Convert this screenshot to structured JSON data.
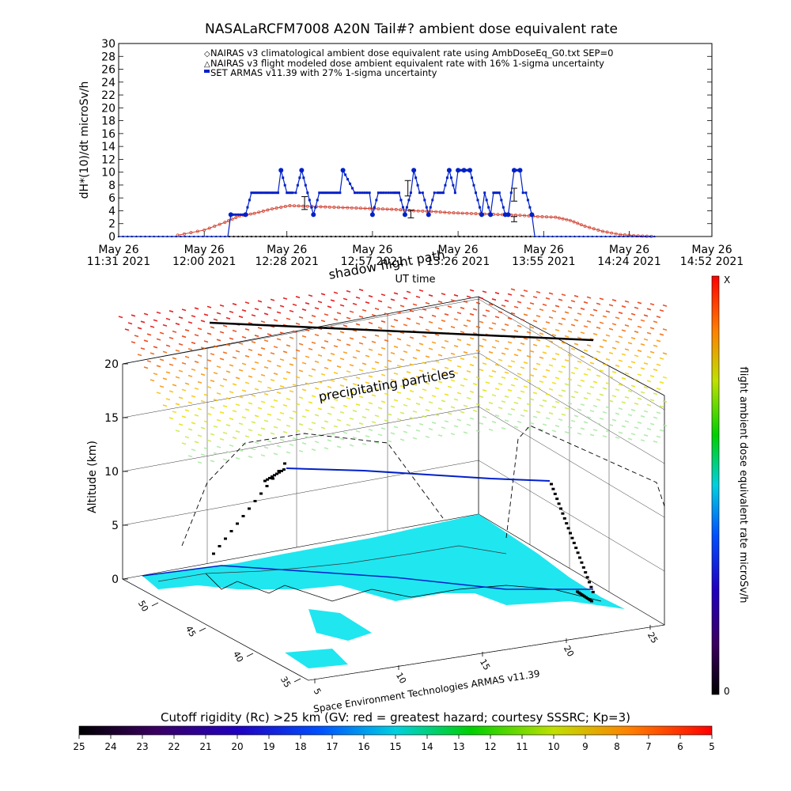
{
  "chart_data": [
    {
      "type": "line",
      "title": "NASALaRCFM7008  A20N Tail#? ambient dose equivalent rate",
      "ylabel": "dH*(10)/dt microSv/h",
      "xlabel": "UT time",
      "ylim": [
        0,
        30
      ],
      "yticks": [
        "0",
        "2",
        "4",
        "6",
        "8",
        "10",
        "12",
        "14",
        "16",
        "18",
        "20",
        "22",
        "24",
        "26",
        "28",
        "30"
      ],
      "xticks": [
        {
          "line1": "May 26",
          "line2": "11:31 2021"
        },
        {
          "line1": "May 26",
          "line2": "12:00 2021"
        },
        {
          "line1": "May 26",
          "line2": "12:28 2021"
        },
        {
          "line1": "May 26",
          "line2": "12:57 2021"
        },
        {
          "line1": "May 26",
          "line2": "13:26 2021"
        },
        {
          "line1": "May 26",
          "line2": "13:55 2021"
        },
        {
          "line1": "May 26",
          "line2": "14:24 2021"
        },
        {
          "line1": "May 26",
          "line2": "14:52 2021"
        }
      ],
      "legend": [
        "NAIRAS v3 climatological ambient dose equivalent rate using AmbDoseEq_G0.txt SEP=0",
        "NAIRAS v3 flight modeled dose ambient equivalent rate with 16% 1-sigma uncertainty",
        "SET ARMAS v11.39 with 27% 1-sigma uncertainty"
      ],
      "legend_position": "top",
      "x_minutes": [
        0,
        29,
        57,
        86,
        115,
        144,
        173,
        201
      ],
      "series": [
        {
          "name": "NAIRAS v3 climatological ambient dose equivalent rate using AmbDoseEq_G0.txt SEP=0",
          "color": "#d04030",
          "x": [
            20,
            29,
            36,
            41,
            46,
            52,
            58,
            64,
            70,
            76,
            82,
            88,
            94,
            100,
            106,
            112,
            118,
            124,
            130,
            136,
            142,
            148,
            153,
            158,
            164,
            170,
            176,
            182
          ],
          "y": [
            0.2,
            1.0,
            2.2,
            3.2,
            3.6,
            4.3,
            4.8,
            4.7,
            4.6,
            4.5,
            4.4,
            4.3,
            4.2,
            4.0,
            3.9,
            3.7,
            3.6,
            3.5,
            3.4,
            3.3,
            3.1,
            3.0,
            2.5,
            1.6,
            0.8,
            0.3,
            0.1,
            0.0
          ]
        },
        {
          "name": "NAIRAS v3 flight modeled dose ambient equivalent rate with 16% 1-sigma uncertainty",
          "color": "#000000",
          "x": [
            0,
            20,
            40,
            60,
            80,
            100,
            120,
            140,
            160,
            180,
            182
          ],
          "y": [
            0,
            0,
            0,
            0,
            0,
            0,
            0,
            0,
            0,
            0,
            0
          ],
          "error_points": [
            {
              "x": 63,
              "y": 5.2,
              "err": 1.0
            },
            {
              "x": 98,
              "y": 7.5,
              "err": 1.2
            },
            {
              "x": 99,
              "y": 3.5,
              "err": 0.6
            },
            {
              "x": 134,
              "y": 6.5,
              "err": 1.0
            },
            {
              "x": 134,
              "y": 2.7,
              "err": 0.4
            }
          ]
        },
        {
          "name": "SET ARMAS v11.39 with 27% 1-sigma uncertainty",
          "color": "#0020c8",
          "x": [
            0,
            20,
            37,
            38,
            43,
            45,
            51,
            54,
            55,
            57,
            59,
            60,
            62,
            64,
            66,
            68,
            75,
            76,
            80,
            85,
            86,
            88,
            93,
            95,
            97,
            99,
            100,
            102,
            103,
            105,
            107,
            108,
            110,
            112,
            114,
            115,
            117,
            119,
            121,
            123,
            124,
            126,
            127,
            129,
            131,
            132,
            133,
            134,
            136,
            137,
            138,
            140,
            141,
            143,
            182
          ],
          "y": [
            0,
            0,
            0,
            3.4,
            3.4,
            6.8,
            6.8,
            6.8,
            10.3,
            6.8,
            6.8,
            6.8,
            10.3,
            6.8,
            3.4,
            6.8,
            6.8,
            10.3,
            6.8,
            6.8,
            3.4,
            6.8,
            6.8,
            6.8,
            3.4,
            6.8,
            10.3,
            6.8,
            6.8,
            3.4,
            6.8,
            6.8,
            6.8,
            10.3,
            6.8,
            10.3,
            10.3,
            10.3,
            6.8,
            3.4,
            6.8,
            3.4,
            6.8,
            6.8,
            3.4,
            3.4,
            6.8,
            10.3,
            10.3,
            6.8,
            6.8,
            3.4,
            0,
            0,
            0
          ]
        }
      ]
    },
    {
      "type": "scatter",
      "annotations": [
        "shadow flight path",
        "precipitating particles"
      ],
      "zlabel": "Altitude (km)",
      "zlim": [
        0,
        20
      ],
      "zticks": [
        "0",
        "5",
        "10",
        "15",
        "20"
      ],
      "lat_ticks": [
        "35",
        "40",
        "45",
        "50"
      ],
      "lon_ticks": [
        "5",
        "10",
        "15",
        "20",
        "25"
      ],
      "flight_altitude_km": [
        0,
        2,
        5,
        8,
        10.3,
        10.3,
        10.3,
        10.0,
        9.6,
        9.0,
        7,
        4,
        1,
        0
      ],
      "colorbar": {
        "label": "flight ambient dose equivalent rate microSv/h",
        "min_label": "0",
        "max_label": "X",
        "orientation": "vertical"
      }
    },
    {
      "type": "heatmap",
      "title": "Cutoff rigidity (Rc) >25 km (GV: red = greatest hazard; courtesy SSSRC; Kp=3)",
      "ticks": [
        "25",
        "24",
        "23",
        "22",
        "21",
        "20",
        "19",
        "18",
        "17",
        "16",
        "15",
        "14",
        "13",
        "12",
        "11",
        "10",
        "9",
        "8",
        "7",
        "6",
        "5"
      ],
      "colors": [
        "#000000",
        "#3a0060",
        "#2000c0",
        "#0050ff",
        "#00c8ff",
        "#00e0a0",
        "#00d000",
        "#a0e000",
        "#ffe000",
        "#ff8000",
        "#ff0000"
      ]
    }
  ],
  "credit": "Space Environment Technologies ARMAS v11.39"
}
